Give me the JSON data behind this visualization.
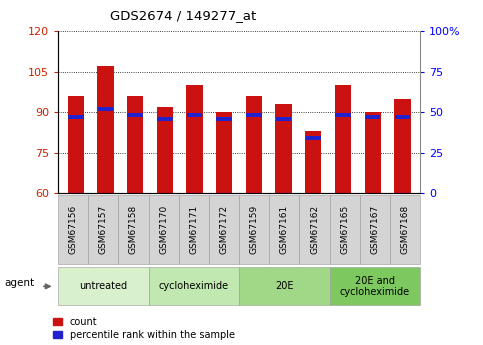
{
  "title": "GDS2674 / 149277_at",
  "samples": [
    "GSM67156",
    "GSM67157",
    "GSM67158",
    "GSM67170",
    "GSM67171",
    "GSM67172",
    "GSM67159",
    "GSM67161",
    "GSM67162",
    "GSM67165",
    "GSM67167",
    "GSM67168"
  ],
  "count_values": [
    96,
    107,
    96,
    92,
    100,
    90,
    96,
    93,
    83,
    100,
    90,
    95
  ],
  "percentile_values": [
    47,
    52,
    48,
    46,
    48,
    46,
    48,
    46,
    34,
    48,
    47,
    47
  ],
  "y_min": 60,
  "y_max": 120,
  "y_ticks": [
    60,
    75,
    90,
    105,
    120
  ],
  "y2_ticks": [
    0,
    25,
    50,
    75,
    100
  ],
  "bar_color": "#cc1111",
  "percentile_color": "#2222cc",
  "groups": [
    {
      "label": "untreated",
      "start": 0,
      "end": 3,
      "color": "#d8f0cc"
    },
    {
      "label": "cycloheximide",
      "start": 3,
      "end": 6,
      "color": "#c0e8b0"
    },
    {
      "label": "20E",
      "start": 6,
      "end": 9,
      "color": "#a0d888"
    },
    {
      "label": "20E and\ncycloheximide",
      "start": 9,
      "end": 12,
      "color": "#7ec860"
    }
  ],
  "legend_count_label": "count",
  "legend_percentile_label": "percentile rank within the sample",
  "agent_label": "agent",
  "bar_width": 0.55
}
